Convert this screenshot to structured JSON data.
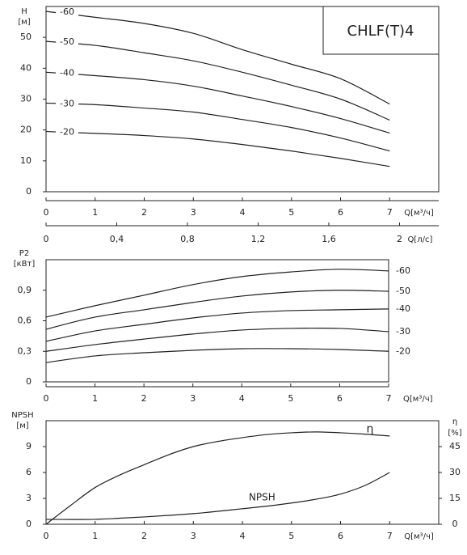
{
  "chart_data": [
    {
      "type": "line",
      "title": "CHLF(T)4",
      "y_label": [
        "H",
        "[м]"
      ],
      "x_label": "Q[м³/ч]",
      "x2_label": "Q[л/с]",
      "x": [
        0,
        1,
        2,
        3,
        4,
        5,
        6,
        7
      ],
      "xlim": [
        0,
        8
      ],
      "xticks": [
        0,
        1,
        2,
        3,
        4,
        5,
        6,
        7
      ],
      "x2lim": [
        0,
        2.222
      ],
      "x2ticks": [
        0,
        {
          "value": 0.4,
          "label": "0,4"
        },
        {
          "value": 0.8,
          "label": "0,8"
        },
        {
          "value": 1.2,
          "label": "1,2"
        },
        {
          "value": 1.6,
          "label": "1,6"
        },
        2
      ],
      "ylim": [
        0,
        60
      ],
      "yticks": [
        0,
        10,
        20,
        30,
        40,
        50
      ],
      "series": [
        {
          "name": "-60",
          "color": "#231f20",
          "values": [
            58.4,
            56.5,
            54.5,
            51.3,
            46,
            41.3,
            36.6,
            28.4
          ]
        },
        {
          "name": "-50",
          "color": "#231f20",
          "values": [
            48.7,
            47.4,
            45,
            42.4,
            38.7,
            34.5,
            30,
            23.2
          ]
        },
        {
          "name": "-40",
          "color": "#231f20",
          "values": [
            38.7,
            37.6,
            36.3,
            34.2,
            31,
            27.6,
            23.7,
            19
          ]
        },
        {
          "name": "-30",
          "color": "#231f20",
          "values": [
            28.7,
            28.2,
            27.1,
            25.8,
            23.4,
            20.8,
            17.4,
            13.2
          ]
        },
        {
          "name": "-20",
          "color": "#231f20",
          "values": [
            19.5,
            18.9,
            18.2,
            17.1,
            15.3,
            13.2,
            10.8,
            8.2
          ]
        }
      ]
    },
    {
      "type": "line",
      "y_label": [
        "P2",
        "[кВт]"
      ],
      "x_label": "Q[м³/ч]",
      "x": [
        0,
        1,
        2,
        3,
        4,
        5,
        6,
        7
      ],
      "xlim": [
        0,
        7
      ],
      "xticks": [
        0,
        1,
        2,
        3,
        4,
        5,
        6,
        7
      ],
      "ylim": [
        0,
        1.2
      ],
      "yticks": [
        0,
        {
          "value": 0.3,
          "label": "0,3"
        },
        {
          "value": 0.6,
          "label": "0,6"
        },
        {
          "value": 0.9,
          "label": "0,9"
        }
      ],
      "series": [
        {
          "name": "-60",
          "color": "#231f20",
          "values": [
            0.636,
            0.748,
            0.851,
            0.955,
            1.034,
            1.08,
            1.106,
            1.09
          ]
        },
        {
          "name": "-50",
          "color": "#231f20",
          "values": [
            0.517,
            0.636,
            0.708,
            0.78,
            0.843,
            0.883,
            0.9,
            0.89
          ]
        },
        {
          "name": "-40",
          "color": "#231f20",
          "values": [
            0.398,
            0.5,
            0.565,
            0.628,
            0.676,
            0.7,
            0.708,
            0.716
          ]
        },
        {
          "name": "-30",
          "color": "#231f20",
          "values": [
            0.3,
            0.366,
            0.42,
            0.47,
            0.509,
            0.525,
            0.525,
            0.493
          ]
        },
        {
          "name": "-20",
          "color": "#231f20",
          "values": [
            0.19,
            0.255,
            0.286,
            0.31,
            0.326,
            0.326,
            0.318,
            0.3
          ]
        }
      ]
    },
    {
      "type": "line",
      "y_label": [
        "NPSH",
        "[м]"
      ],
      "y2_label": [
        "η",
        "[%]"
      ],
      "x_label": "Q[м³/ч]",
      "x": [
        0,
        0.5,
        1,
        1.5,
        2,
        2.5,
        3,
        3.5,
        4,
        4.5,
        5,
        5.5,
        6,
        6.5,
        7
      ],
      "xlim": [
        0,
        8
      ],
      "xticks": [
        0,
        1,
        2,
        3,
        4,
        5,
        6,
        7
      ],
      "ylim": [
        0,
        12
      ],
      "yticks": [
        0,
        3,
        6,
        9
      ],
      "y2lim": [
        0,
        60
      ],
      "y2ticks": [
        0,
        15,
        30,
        45
      ],
      "series": [
        {
          "name": "NPSH",
          "color": "#231f20",
          "values": [
            0.57,
            0.55,
            0.57,
            0.7,
            0.85,
            1.03,
            1.23,
            1.5,
            1.8,
            2.1,
            2.46,
            2.9,
            3.5,
            4.5,
            6
          ]
        },
        {
          "name": "η",
          "color": "#231f20",
          "axis": "y2",
          "values": [
            0,
            10.9,
            21.3,
            28.5,
            34.5,
            40.3,
            45,
            48,
            50.2,
            52,
            53,
            53.5,
            53,
            52.2,
            51.1
          ]
        }
      ]
    }
  ]
}
